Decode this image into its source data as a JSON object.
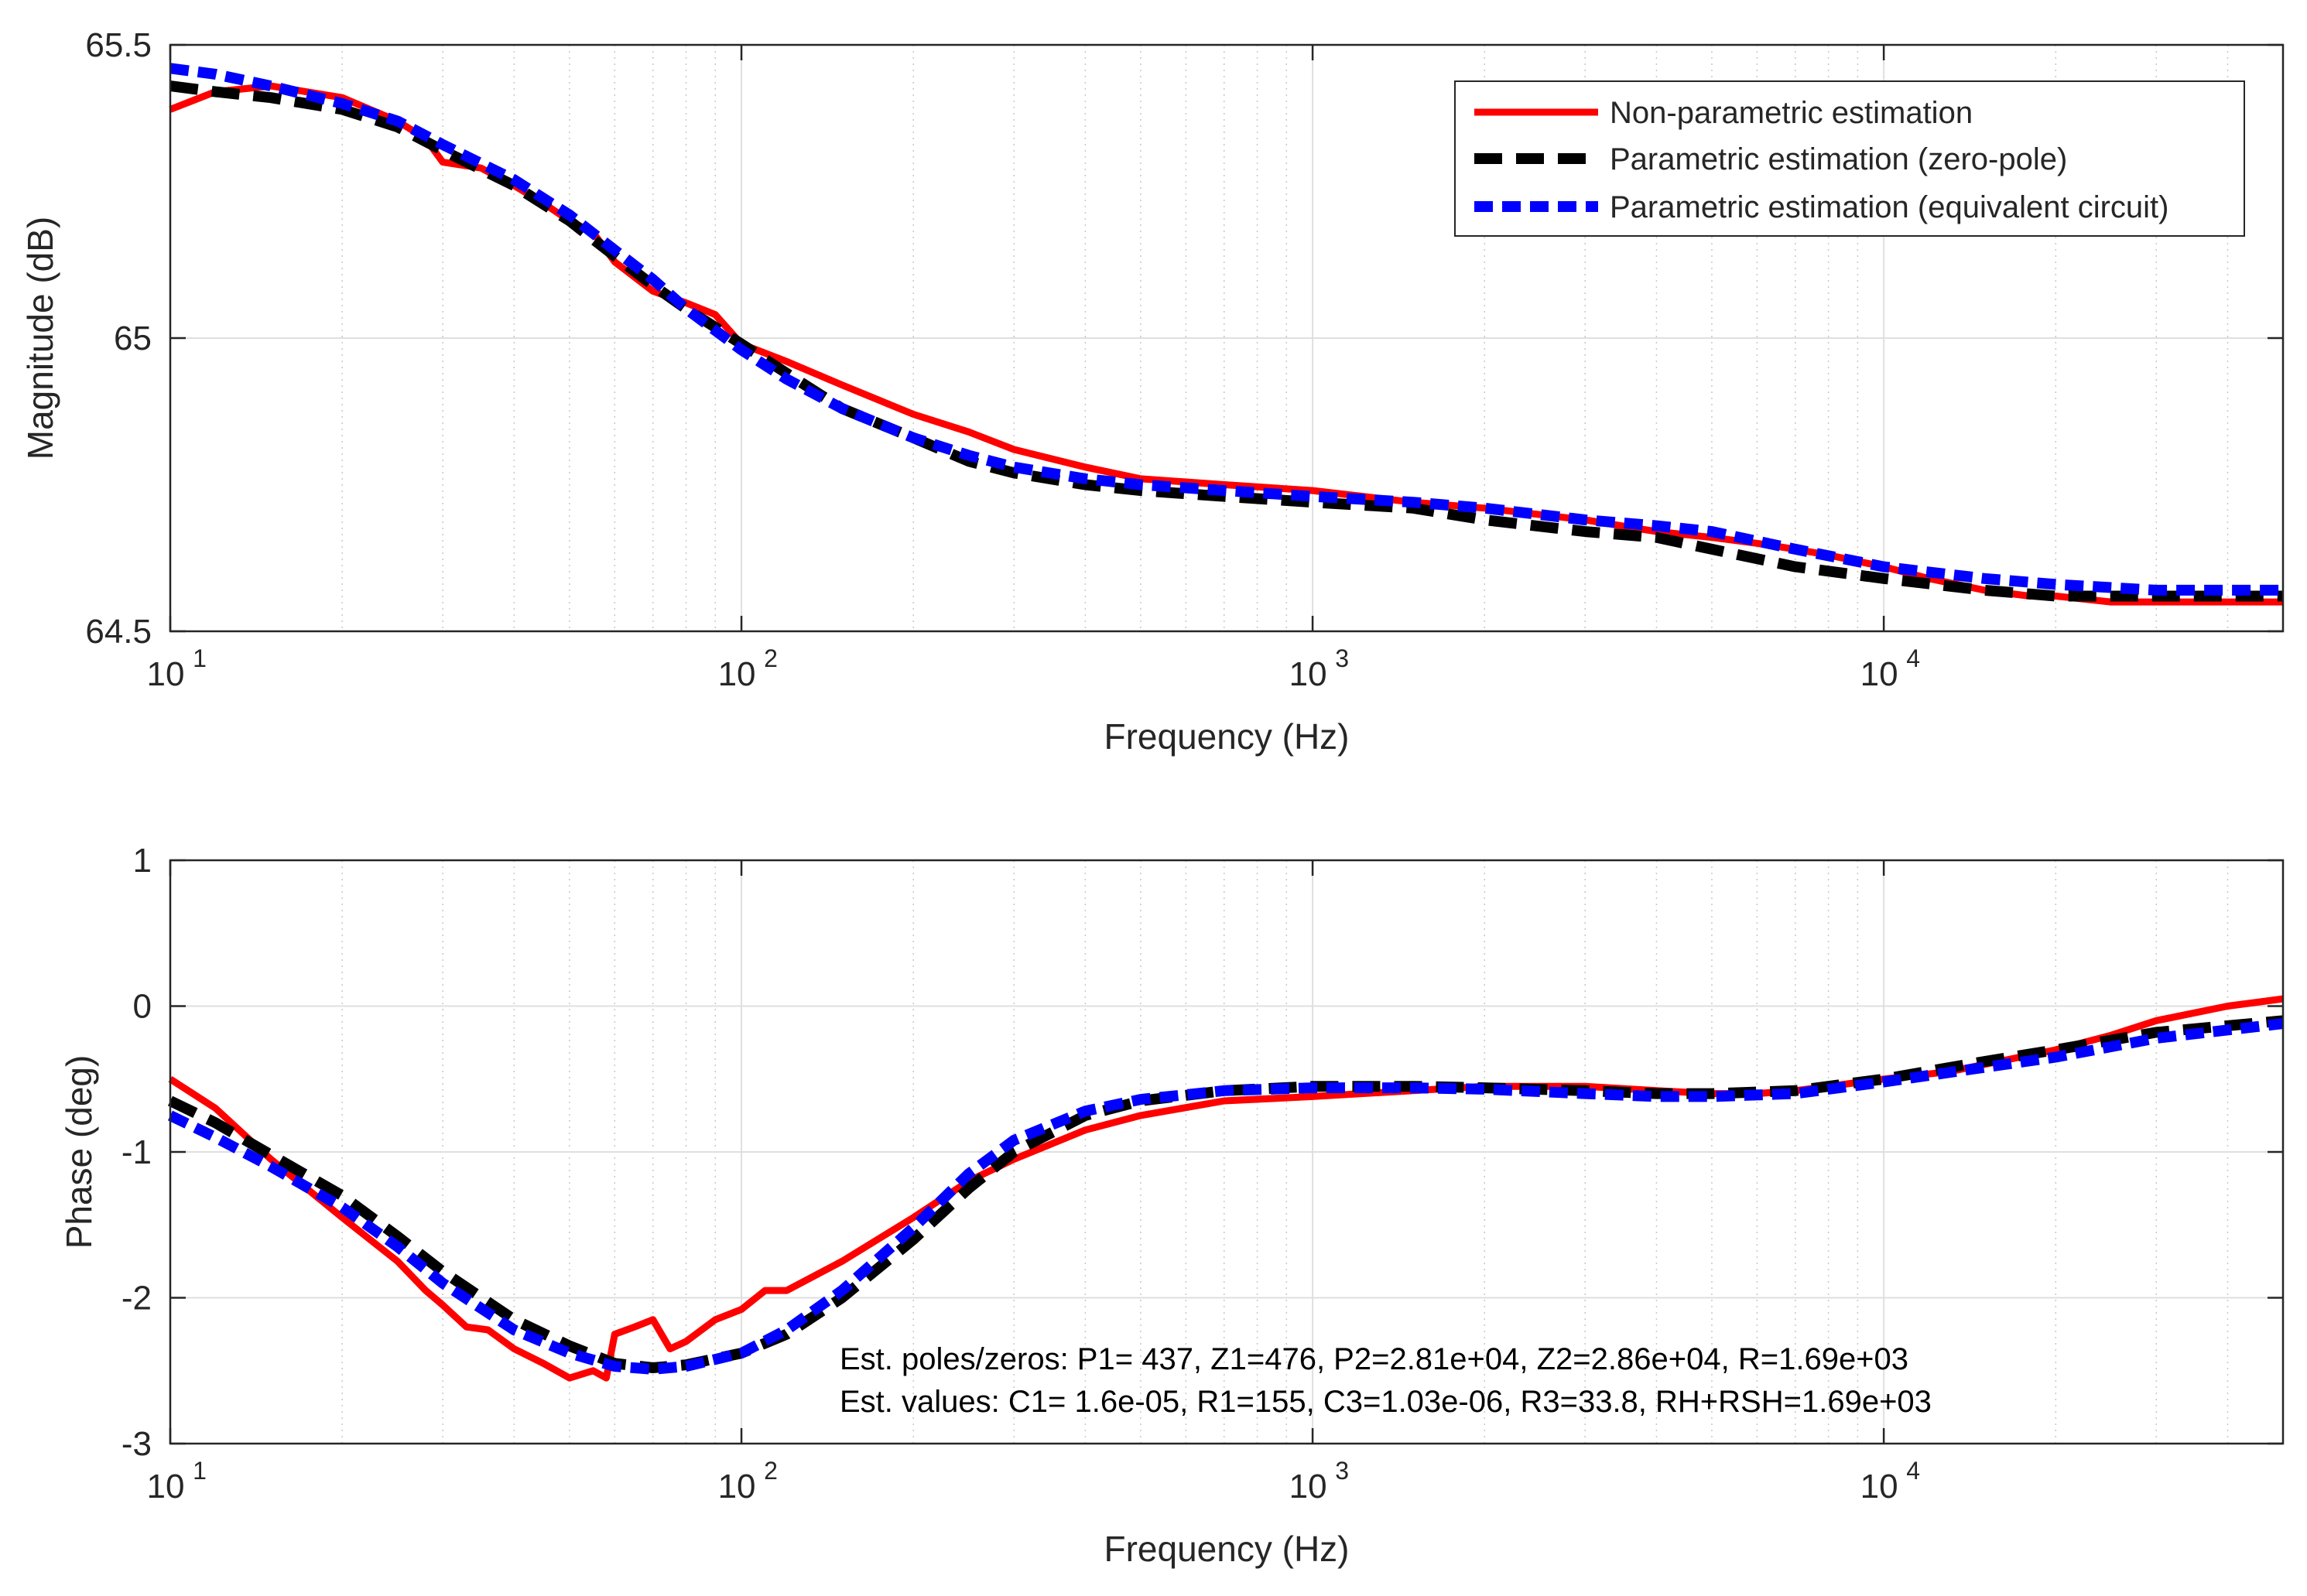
{
  "chart_data": [
    {
      "type": "line",
      "xscale": "log",
      "xlabel": "Frequency (Hz)",
      "ylabel": "Magnitude (dB)",
      "xlim": [
        10,
        50000
      ],
      "ylim": [
        64.5,
        65.5
      ],
      "grid": "on",
      "x_ticks": [
        10,
        100,
        1000,
        10000
      ],
      "x_tick_labels": [
        {
          "base": "10",
          "exp": "1"
        },
        {
          "base": "10",
          "exp": "2"
        },
        {
          "base": "10",
          "exp": "3"
        },
        {
          "base": "10",
          "exp": "4"
        }
      ],
      "y_ticks": [
        64.5,
        65,
        65.5
      ],
      "y_tick_labels": [
        "64.5",
        "65",
        "65.5"
      ],
      "legend": {
        "placement": "top-right",
        "entries": [
          {
            "label": "Non-parametric estimation",
            "color": "#ff0000",
            "style": "solid"
          },
          {
            "label": "Parametric estimation (zero-pole)",
            "color": "#000000",
            "style": "dashed"
          },
          {
            "label": "Parametric estimation (equivalent circuit)",
            "color": "#0000ff",
            "style": "dashed"
          }
        ]
      },
      "series": [
        {
          "name": "Non-parametric estimation",
          "color": "#ff0000",
          "style": "solid",
          "x": [
            10,
            12,
            15,
            20,
            25,
            28,
            30,
            35,
            40,
            45,
            50,
            55,
            60,
            70,
            80,
            90,
            100,
            120,
            150,
            200,
            250,
            300,
            400,
            500,
            700,
            1000,
            1500,
            2000,
            3000,
            4000,
            5000,
            6000,
            7000,
            8000,
            10000,
            12000,
            15000,
            18000,
            20000,
            25000,
            30000,
            40000,
            50000
          ],
          "values": [
            65.39,
            65.42,
            65.43,
            65.41,
            65.37,
            65.34,
            65.3,
            65.29,
            65.26,
            65.23,
            65.2,
            65.18,
            65.13,
            65.08,
            65.06,
            65.04,
            64.99,
            64.96,
            64.92,
            64.87,
            64.84,
            64.81,
            64.78,
            64.76,
            64.75,
            64.74,
            64.72,
            64.71,
            64.69,
            64.67,
            64.66,
            64.65,
            64.64,
            64.63,
            64.61,
            64.59,
            64.57,
            64.56,
            64.56,
            64.55,
            64.55,
            64.55,
            64.55
          ]
        },
        {
          "name": "Parametric estimation (zero-pole)",
          "color": "#000000",
          "style": "dashed",
          "x": [
            10,
            12,
            15,
            20,
            25,
            30,
            40,
            50,
            60,
            70,
            80,
            100,
            120,
            150,
            200,
            250,
            300,
            400,
            500,
            700,
            1000,
            1500,
            2000,
            3000,
            4000,
            5000,
            7000,
            10000,
            15000,
            20000,
            30000,
            50000
          ],
          "values": [
            65.43,
            65.42,
            65.41,
            65.39,
            65.36,
            65.32,
            65.26,
            65.2,
            65.14,
            65.09,
            65.05,
            64.99,
            64.94,
            64.88,
            64.83,
            64.79,
            64.77,
            64.75,
            64.74,
            64.73,
            64.72,
            64.71,
            64.69,
            64.67,
            64.66,
            64.64,
            64.61,
            64.59,
            64.57,
            64.56,
            64.56,
            64.56
          ]
        },
        {
          "name": "Parametric estimation (equivalent circuit)",
          "color": "#0000ff",
          "style": "dashed",
          "x": [
            10,
            12,
            15,
            20,
            25,
            30,
            40,
            50,
            60,
            70,
            80,
            100,
            120,
            150,
            200,
            250,
            300,
            400,
            500,
            700,
            1000,
            1500,
            2000,
            3000,
            4000,
            5000,
            7000,
            10000,
            15000,
            20000,
            30000,
            50000
          ],
          "values": [
            65.46,
            65.45,
            65.43,
            65.4,
            65.37,
            65.33,
            65.27,
            65.21,
            65.15,
            65.1,
            65.05,
            64.98,
            64.93,
            64.88,
            64.83,
            64.8,
            64.78,
            64.76,
            64.75,
            64.74,
            64.73,
            64.72,
            64.71,
            64.69,
            64.68,
            64.67,
            64.64,
            64.61,
            64.59,
            64.58,
            64.57,
            64.57
          ]
        }
      ]
    },
    {
      "type": "line",
      "xscale": "log",
      "xlabel": "Frequency (Hz)",
      "ylabel": "Phase (deg)",
      "xlim": [
        10,
        50000
      ],
      "ylim": [
        -3,
        1
      ],
      "grid": "on",
      "x_ticks": [
        10,
        100,
        1000,
        10000
      ],
      "x_tick_labels": [
        {
          "base": "10",
          "exp": "1"
        },
        {
          "base": "10",
          "exp": "2"
        },
        {
          "base": "10",
          "exp": "3"
        },
        {
          "base": "10",
          "exp": "4"
        }
      ],
      "y_ticks": [
        -3,
        -2,
        -1,
        0,
        1
      ],
      "y_tick_labels": [
        "-3",
        "-2",
        "-1",
        "0",
        "1"
      ],
      "annotations": [
        "Est. poles/zeros: P1= 437, Z1=476, P2=2.81e+04, Z2=2.86e+04, R=1.69e+03",
        "Est. values: C1= 1.6e-05, R1=155, C3=1.03e-06, R3=33.8, RH+RSH=1.69e+03"
      ],
      "series": [
        {
          "name": "Non-parametric estimation",
          "color": "#ff0000",
          "style": "solid",
          "x": [
            10,
            12,
            15,
            20,
            25,
            28,
            30,
            33,
            36,
            40,
            45,
            50,
            55,
            58,
            60,
            65,
            70,
            75,
            80,
            90,
            100,
            110,
            120,
            150,
            200,
            250,
            300,
            400,
            500,
            700,
            1000,
            1500,
            2000,
            3000,
            4000,
            5000,
            6000,
            7000,
            8000,
            10000,
            13000,
            15000,
            20000,
            25000,
            30000,
            40000,
            50000
          ],
          "values": [
            -0.5,
            -0.7,
            -1.05,
            -1.45,
            -1.75,
            -1.95,
            -2.05,
            -2.2,
            -2.22,
            -2.35,
            -2.45,
            -2.55,
            -2.5,
            -2.55,
            -2.25,
            -2.2,
            -2.15,
            -2.35,
            -2.3,
            -2.15,
            -2.08,
            -1.95,
            -1.95,
            -1.75,
            -1.45,
            -1.2,
            -1.05,
            -0.85,
            -0.75,
            -0.65,
            -0.62,
            -0.58,
            -0.55,
            -0.55,
            -0.58,
            -0.6,
            -0.6,
            -0.58,
            -0.55,
            -0.5,
            -0.45,
            -0.4,
            -0.3,
            -0.2,
            -0.1,
            0.0,
            0.05
          ]
        },
        {
          "name": "Parametric estimation (zero-pole)",
          "color": "#000000",
          "style": "dashed",
          "x": [
            10,
            12,
            15,
            20,
            25,
            30,
            40,
            50,
            60,
            70,
            80,
            100,
            120,
            150,
            200,
            250,
            300,
            400,
            500,
            700,
            1000,
            1500,
            2000,
            3000,
            4000,
            5000,
            7000,
            10000,
            15000,
            20000,
            30000,
            50000
          ],
          "values": [
            -0.65,
            -0.8,
            -1.02,
            -1.3,
            -1.58,
            -1.82,
            -2.15,
            -2.33,
            -2.45,
            -2.48,
            -2.46,
            -2.38,
            -2.25,
            -2.0,
            -1.6,
            -1.25,
            -1.0,
            -0.75,
            -0.65,
            -0.58,
            -0.55,
            -0.55,
            -0.56,
            -0.58,
            -0.6,
            -0.6,
            -0.58,
            -0.5,
            -0.38,
            -0.3,
            -0.18,
            -0.1
          ]
        },
        {
          "name": "Parametric estimation (equivalent circuit)",
          "color": "#0000ff",
          "style": "dashed",
          "x": [
            10,
            12,
            15,
            20,
            25,
            30,
            40,
            50,
            60,
            70,
            80,
            100,
            120,
            150,
            200,
            250,
            300,
            400,
            500,
            700,
            1000,
            1500,
            2000,
            3000,
            4000,
            5000,
            7000,
            10000,
            15000,
            20000,
            30000,
            50000
          ],
          "values": [
            -0.75,
            -0.9,
            -1.1,
            -1.38,
            -1.65,
            -1.9,
            -2.22,
            -2.38,
            -2.47,
            -2.49,
            -2.47,
            -2.38,
            -2.22,
            -1.95,
            -1.52,
            -1.15,
            -0.92,
            -0.72,
            -0.64,
            -0.58,
            -0.56,
            -0.56,
            -0.57,
            -0.6,
            -0.62,
            -0.62,
            -0.6,
            -0.52,
            -0.42,
            -0.35,
            -0.22,
            -0.12
          ]
        }
      ]
    }
  ]
}
